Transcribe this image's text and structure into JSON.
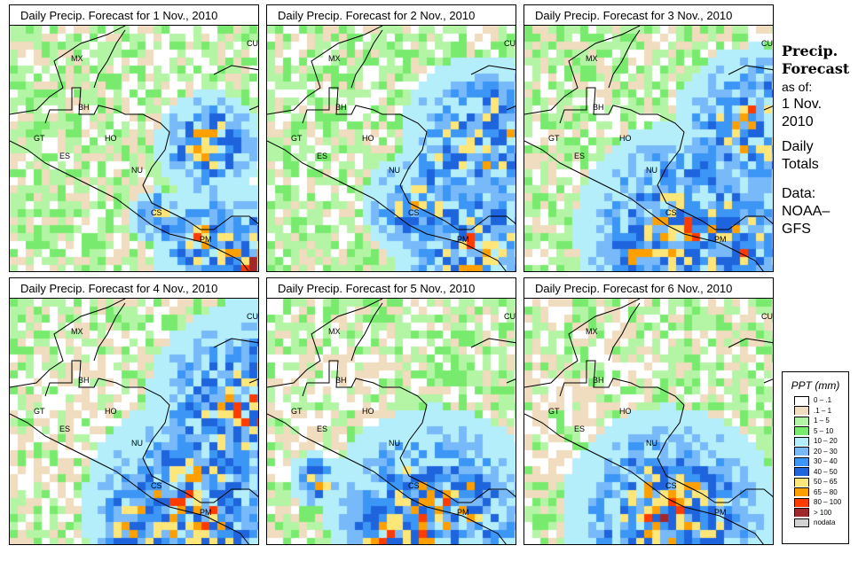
{
  "panels": [
    {
      "title": "Daily Precip. Forecast for  1 Nov., 2010"
    },
    {
      "title": "Daily Precip. Forecast for  2 Nov., 2010"
    },
    {
      "title": "Daily Precip. Forecast for  3 Nov., 2010"
    },
    {
      "title": "Daily Precip. Forecast for  4 Nov., 2010"
    },
    {
      "title": "Daily Precip. Forecast for  5 Nov., 2010"
    },
    {
      "title": "Daily Precip. Forecast for  6 Nov., 2010"
    }
  ],
  "country_labels": [
    "MX",
    "BH",
    "GT",
    "HO",
    "ES",
    "NU",
    "CS",
    "PM",
    "CU"
  ],
  "side": {
    "line1": "Precip.",
    "line2": "Forecast",
    "line3": "as of:",
    "line4": "1 Nov.",
    "line5": "2010",
    "line6": "Daily",
    "line7": "Totals",
    "line8": "Data:",
    "line9": "NOAA–",
    "line10": "GFS"
  },
  "legend": {
    "title": "PPT (mm)",
    "items": [
      {
        "label": "0 – .1",
        "color": "#ffffff"
      },
      {
        "label": ".1 – 1",
        "color": "#f0dcbe"
      },
      {
        "label": "1 – 5",
        "color": "#b4f5a5"
      },
      {
        "label": "5 – 10",
        "color": "#78eb6e"
      },
      {
        "label": "10 – 20",
        "color": "#b4eefa"
      },
      {
        "label": "20 – 30",
        "color": "#78b9fa"
      },
      {
        "label": "30 – 40",
        "color": "#3c96f5"
      },
      {
        "label": "40 – 50",
        "color": "#1e64dc"
      },
      {
        "label": "50 – 65",
        "color": "#ffe678"
      },
      {
        "label": "65 – 80",
        "color": "#ffa000"
      },
      {
        "label": "80 – 100",
        "color": "#ff3c00"
      },
      {
        "label": "> 100",
        "color": "#a0282d"
      },
      {
        "label": "nodata",
        "color": "#d2d2d2"
      }
    ]
  }
}
